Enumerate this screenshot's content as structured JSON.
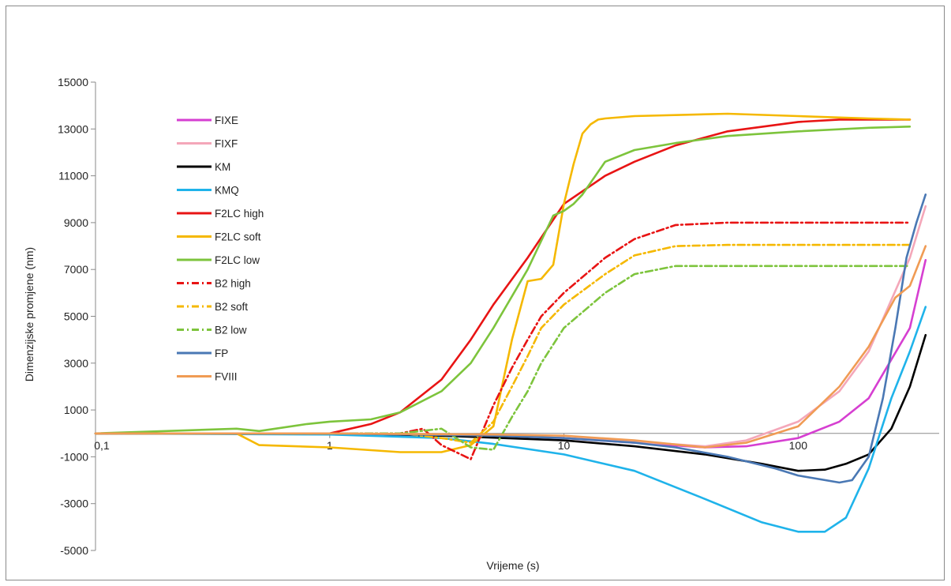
{
  "chart_data": {
    "type": "line",
    "title": "",
    "xlabel": "Vrijeme (s)",
    "ylabel": "Dimenzijske promjene (nm)",
    "x_scale": "log",
    "xlim": [
      0.1,
      400
    ],
    "ylim": [
      -5000,
      15000
    ],
    "x_tick_labels": [
      "0,1",
      "1",
      "10",
      "100"
    ],
    "x_tick_values": [
      0.1,
      1,
      10,
      100
    ],
    "y_ticks": [
      -5000,
      -3000,
      -1000,
      1000,
      3000,
      5000,
      7000,
      9000,
      11000,
      13000,
      15000
    ],
    "grid": false,
    "legend_position": "left",
    "series": [
      {
        "name": "FIXE",
        "color": "#d63fd1",
        "dash": "solid",
        "x": [
          0.1,
          1,
          5,
          10,
          20,
          40,
          60,
          100,
          150,
          200,
          300,
          350
        ],
        "y": [
          0,
          0,
          -100,
          -200,
          -400,
          -600,
          -550,
          -200,
          500,
          1500,
          4500,
          7400
        ]
      },
      {
        "name": "FIXF",
        "color": "#f4a7b9",
        "dash": "solid",
        "x": [
          0.1,
          1,
          5,
          10,
          20,
          40,
          60,
          100,
          150,
          200,
          300,
          350
        ],
        "y": [
          0,
          0,
          -100,
          -200,
          -350,
          -550,
          -300,
          500,
          1800,
          3500,
          7500,
          9700
        ]
      },
      {
        "name": "KM",
        "color": "#000000",
        "dash": "solid",
        "x": [
          0.1,
          1,
          3,
          10,
          20,
          40,
          70,
          100,
          130,
          160,
          200,
          250,
          300,
          350
        ],
        "y": [
          0,
          0,
          -100,
          -300,
          -550,
          -900,
          -1300,
          -1600,
          -1550,
          -1300,
          -900,
          200,
          2000,
          4200
        ]
      },
      {
        "name": "KMQ",
        "color": "#1fb3ea",
        "dash": "solid",
        "x": [
          0.1,
          1,
          3,
          5,
          10,
          20,
          40,
          70,
          100,
          130,
          160,
          200,
          250,
          300,
          350
        ],
        "y": [
          0,
          -50,
          -200,
          -450,
          -900,
          -1600,
          -2800,
          -3800,
          -4200,
          -4200,
          -3600,
          -1500,
          1500,
          3500,
          5400
        ]
      },
      {
        "name": "F2LC high",
        "color": "#e81414",
        "dash": "solid",
        "x": [
          0.1,
          1,
          1.5,
          2,
          3,
          4,
          5,
          7,
          10,
          15,
          20,
          30,
          50,
          100,
          150,
          200,
          300
        ],
        "y": [
          0,
          0,
          400,
          900,
          2300,
          4000,
          5500,
          7500,
          9800,
          11000,
          11600,
          12300,
          12900,
          13300,
          13400,
          13400,
          13400
        ]
      },
      {
        "name": "F2LC soft",
        "color": "#f5b800",
        "dash": "solid",
        "x": [
          0.1,
          0.4,
          0.5,
          1,
          2,
          3,
          4,
          5,
          6,
          7,
          8,
          9,
          10,
          11,
          12,
          13,
          14,
          15,
          20,
          50,
          100,
          200,
          300
        ],
        "y": [
          0,
          0,
          -500,
          -600,
          -800,
          -800,
          -500,
          300,
          4000,
          6500,
          6600,
          7200,
          9800,
          11500,
          12800,
          13200,
          13400,
          13450,
          13550,
          13650,
          13550,
          13450,
          13400
        ]
      },
      {
        "name": "F2LC low",
        "color": "#7dc43c",
        "dash": "solid",
        "x": [
          0.1,
          0.4,
          0.5,
          0.8,
          1,
          1.5,
          2,
          3,
          4,
          5,
          7,
          9,
          10,
          11,
          12,
          15,
          20,
          30,
          50,
          100,
          200,
          300
        ],
        "y": [
          0,
          200,
          100,
          400,
          500,
          600,
          900,
          1800,
          3000,
          4500,
          7000,
          9300,
          9500,
          9800,
          10200,
          11600,
          12100,
          12400,
          12700,
          12900,
          13050,
          13100
        ]
      },
      {
        "name": "B2 high",
        "color": "#e81414",
        "dash": "dashdot",
        "x": [
          0.1,
          2,
          2.5,
          3,
          4,
          5,
          6,
          7,
          8,
          10,
          15,
          20,
          30,
          50,
          100,
          300
        ],
        "y": [
          0,
          0,
          200,
          -500,
          -1100,
          1200,
          2800,
          4000,
          5000,
          6000,
          7500,
          8300,
          8900,
          9000,
          9000,
          9000
        ]
      },
      {
        "name": "B2 soft",
        "color": "#f5b800",
        "dash": "dashdot",
        "x": [
          0.1,
          2,
          3,
          4,
          5,
          6,
          7,
          8,
          10,
          15,
          20,
          30,
          50,
          100,
          300
        ],
        "y": [
          0,
          0,
          -200,
          -400,
          500,
          2000,
          3300,
          4500,
          5500,
          6800,
          7600,
          8000,
          8050,
          8050,
          8050
        ]
      },
      {
        "name": "B2 low",
        "color": "#7dc43c",
        "dash": "dashdot",
        "x": [
          0.1,
          2,
          3,
          4,
          5,
          6,
          7,
          8,
          10,
          15,
          20,
          30,
          50,
          100,
          300
        ],
        "y": [
          0,
          0,
          200,
          -600,
          -700,
          700,
          1800,
          3000,
          4500,
          6000,
          6800,
          7150,
          7150,
          7150,
          7150
        ]
      },
      {
        "name": "FP",
        "color": "#4a78b4",
        "dash": "solid",
        "x": [
          0.1,
          1,
          5,
          10,
          20,
          30,
          50,
          80,
          100,
          150,
          170,
          200,
          230,
          260,
          290,
          320,
          350
        ],
        "y": [
          0,
          0,
          -100,
          -200,
          -400,
          -600,
          -1000,
          -1500,
          -1800,
          -2100,
          -2000,
          -1000,
          1500,
          4500,
          7500,
          9000,
          10200
        ]
      },
      {
        "name": "FVIII",
        "color": "#f09b54",
        "dash": "solid",
        "x": [
          0.1,
          1,
          5,
          10,
          20,
          40,
          60,
          100,
          150,
          200,
          260,
          300,
          350
        ],
        "y": [
          0,
          0,
          -50,
          -100,
          -300,
          -600,
          -400,
          300,
          2000,
          3700,
          5800,
          6300,
          8000
        ]
      }
    ]
  }
}
